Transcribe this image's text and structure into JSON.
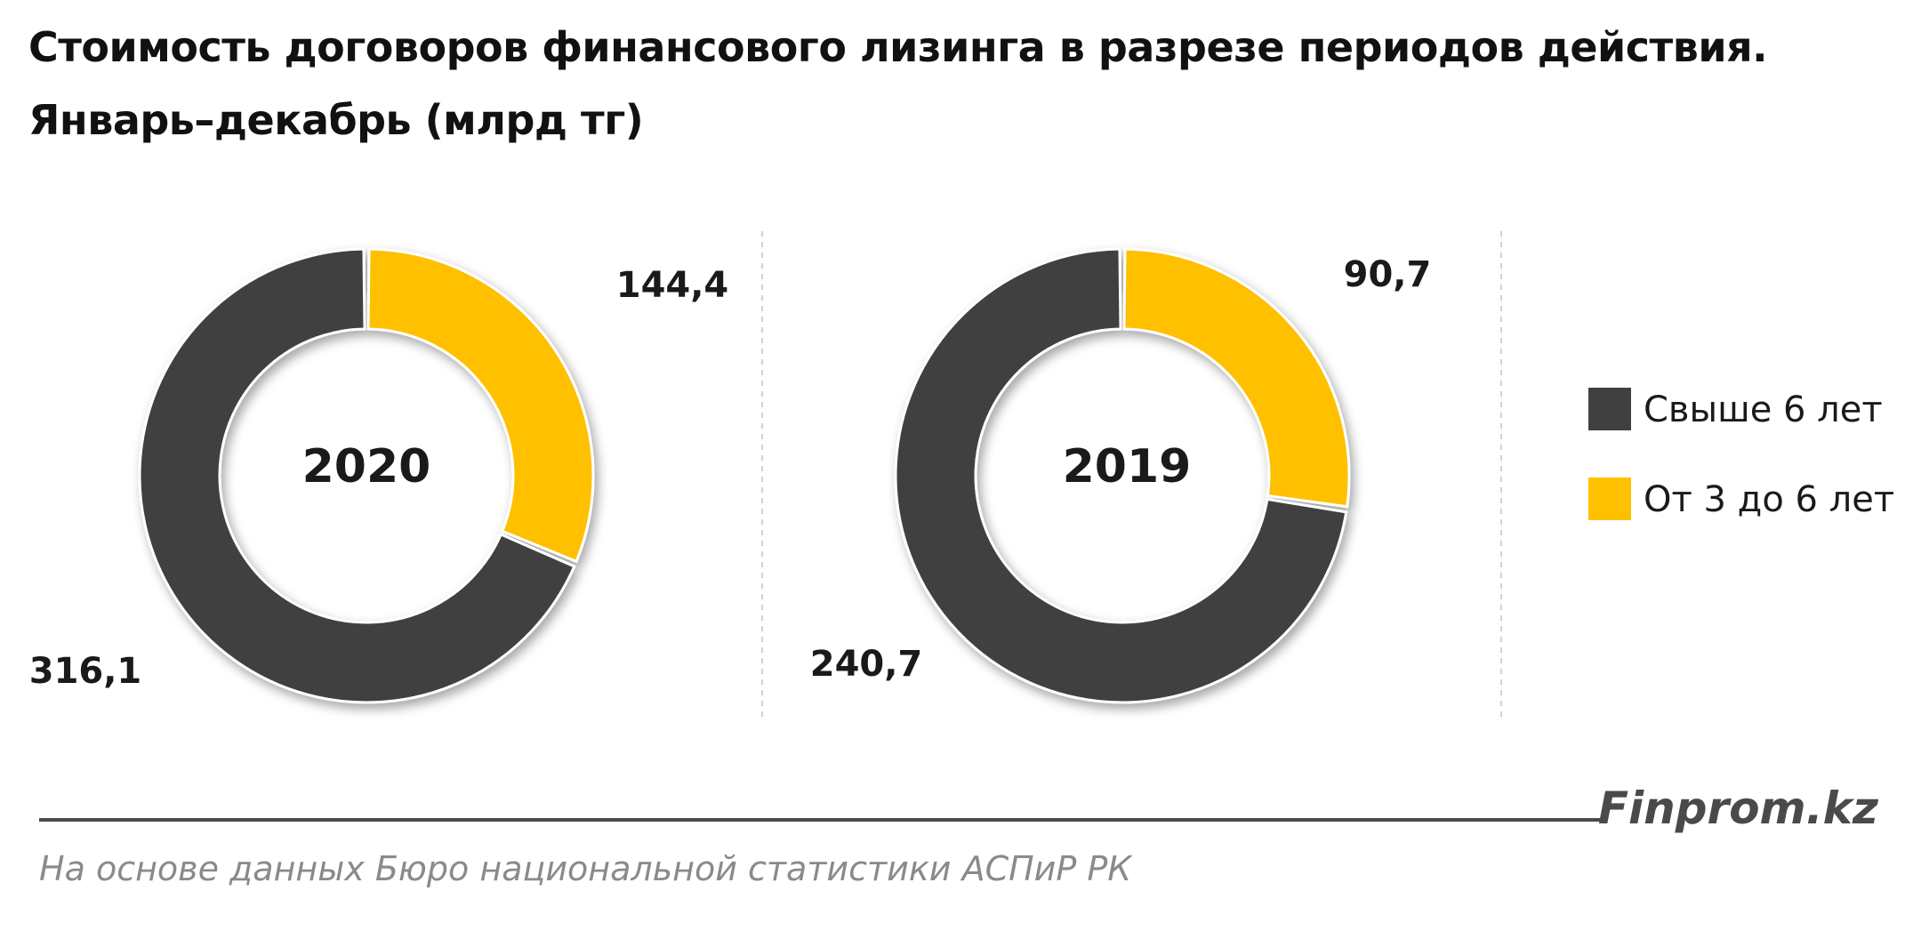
{
  "title": {
    "line1": "Стоимость договоров финансового лизинга в разрезе периодов действия.",
    "line2": "Январь–декабрь (млрд тг)"
  },
  "chart_data": {
    "type": "pie",
    "donut": true,
    "colors": {
      "Свыше 6 лет": "#404040",
      "От 3 до 6 лет": "#FFC000"
    },
    "legend": {
      "position": "right",
      "entries": [
        "Свыше 6 лет",
        "От 3 до 6 лет"
      ]
    },
    "charts": [
      {
        "center_label": "2020",
        "slices": [
          {
            "name": "От 3 до 6 лет",
            "value": 144.4,
            "label": "144,4"
          },
          {
            "name": "Свыше 6 лет",
            "value": 316.1,
            "label": "316,1"
          }
        ]
      },
      {
        "center_label": "2019",
        "slices": [
          {
            "name": "От 3 до 6 лет",
            "value": 90.7,
            "label": "90,7"
          },
          {
            "name": "Свыше 6 лет",
            "value": 240.7,
            "label": "240,7"
          }
        ]
      }
    ]
  },
  "footer": {
    "brand": "Finprom.kz",
    "source": "На основе данных Бюро национальной статистики АСПиР РК"
  }
}
